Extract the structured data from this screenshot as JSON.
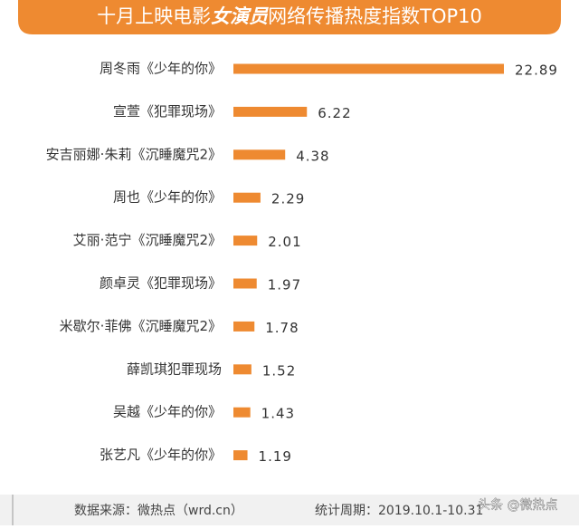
{
  "chart_data": {
    "type": "bar",
    "orientation": "horizontal",
    "title": [
      "十月上映电影",
      "女演员",
      "网络传播热度指数TOP10"
    ],
    "categories": [
      "周冬雨《少年的你》",
      "宣萱《犯罪现场》",
      "安吉丽娜·朱莉《沉睡魔咒2》",
      "周也《少年的你》",
      "艾丽·范宁《沉睡魔咒2》",
      "颜卓灵《犯罪现场》",
      "米歇尔·菲佛《沉睡魔咒2》",
      "薛凯琪犯罪现场",
      "吴越《少年的你》",
      "张艺凡《少年的你》"
    ],
    "values": [
      22.89,
      6.22,
      4.38,
      2.29,
      2.01,
      1.97,
      1.78,
      1.52,
      1.43,
      1.19
    ],
    "color": "#ee8a31",
    "source": "数据来源：微热点（wrd.cn）",
    "period": "统计周期：2019.10.1-10.31",
    "watermark": "头条 @微热点"
  }
}
